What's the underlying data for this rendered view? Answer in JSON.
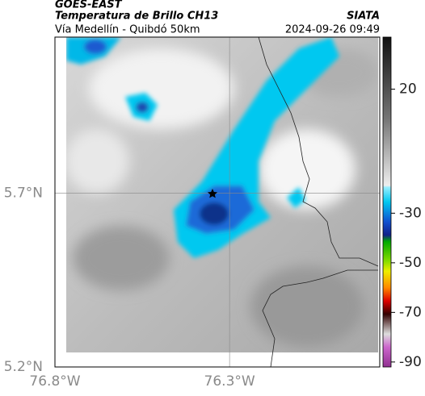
{
  "header": {
    "source": "GOES-EAST",
    "title": "Temperatura de Brillo CH13",
    "subtitle": "Vía Medellín - Quibdó 50km",
    "org": "SIATA",
    "datetime": "2024-09-26 09:49"
  },
  "map": {
    "lon_lim": [
      -76.8,
      -75.87
    ],
    "lat_lim": [
      5.2,
      6.15
    ],
    "lon_ticks": [
      {
        "value": -76.8,
        "label": "76.8°W"
      },
      {
        "value": -76.3,
        "label": "76.3°W"
      }
    ],
    "lat_ticks": [
      {
        "value": 5.7,
        "label": "5.7°N"
      },
      {
        "value": 5.2,
        "label": "5.2°N"
      }
    ],
    "grid": [
      {
        "lon": -76.3
      },
      {
        "lat": 5.7
      }
    ]
  },
  "colorbar": {
    "lim": [
      -92,
      41
    ],
    "ticks": [
      20,
      -30,
      -50,
      -70,
      -90
    ]
  }
}
